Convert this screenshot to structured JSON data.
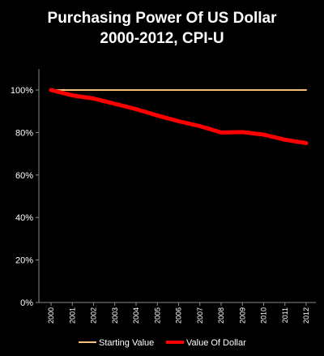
{
  "chart_data": {
    "type": "line",
    "title_line1": "Purchasing Power Of US Dollar",
    "title_line2": "2000-2012, CPI-U",
    "xlabel": "",
    "ylabel": "",
    "categories": [
      "2000",
      "2001",
      "2002",
      "2003",
      "2004",
      "2005",
      "2006",
      "2007",
      "2008",
      "2009",
      "2010",
      "2011",
      "2012"
    ],
    "ylim": [
      0,
      1
    ],
    "yticks": [
      {
        "value": 0,
        "label": "0%"
      },
      {
        "value": 0.2,
        "label": "20%"
      },
      {
        "value": 0.4,
        "label": "40%"
      },
      {
        "value": 0.6,
        "label": "60%"
      },
      {
        "value": 0.8,
        "label": "80%"
      },
      {
        "value": 1.0,
        "label": "100%"
      }
    ],
    "grid": false,
    "legend_position": "bottom",
    "series": [
      {
        "name": "Starting Value",
        "color": "#f5c07a",
        "values": [
          1.0,
          1.0,
          1.0,
          1.0,
          1.0,
          1.0,
          1.0,
          1.0,
          1.0,
          1.0,
          1.0,
          1.0,
          1.0
        ]
      },
      {
        "name": "Value Of Dollar",
        "color": "#ff0000",
        "values": [
          1.0,
          0.975,
          0.96,
          0.935,
          0.91,
          0.88,
          0.853,
          0.83,
          0.8,
          0.802,
          0.79,
          0.766,
          0.75
        ]
      }
    ]
  }
}
